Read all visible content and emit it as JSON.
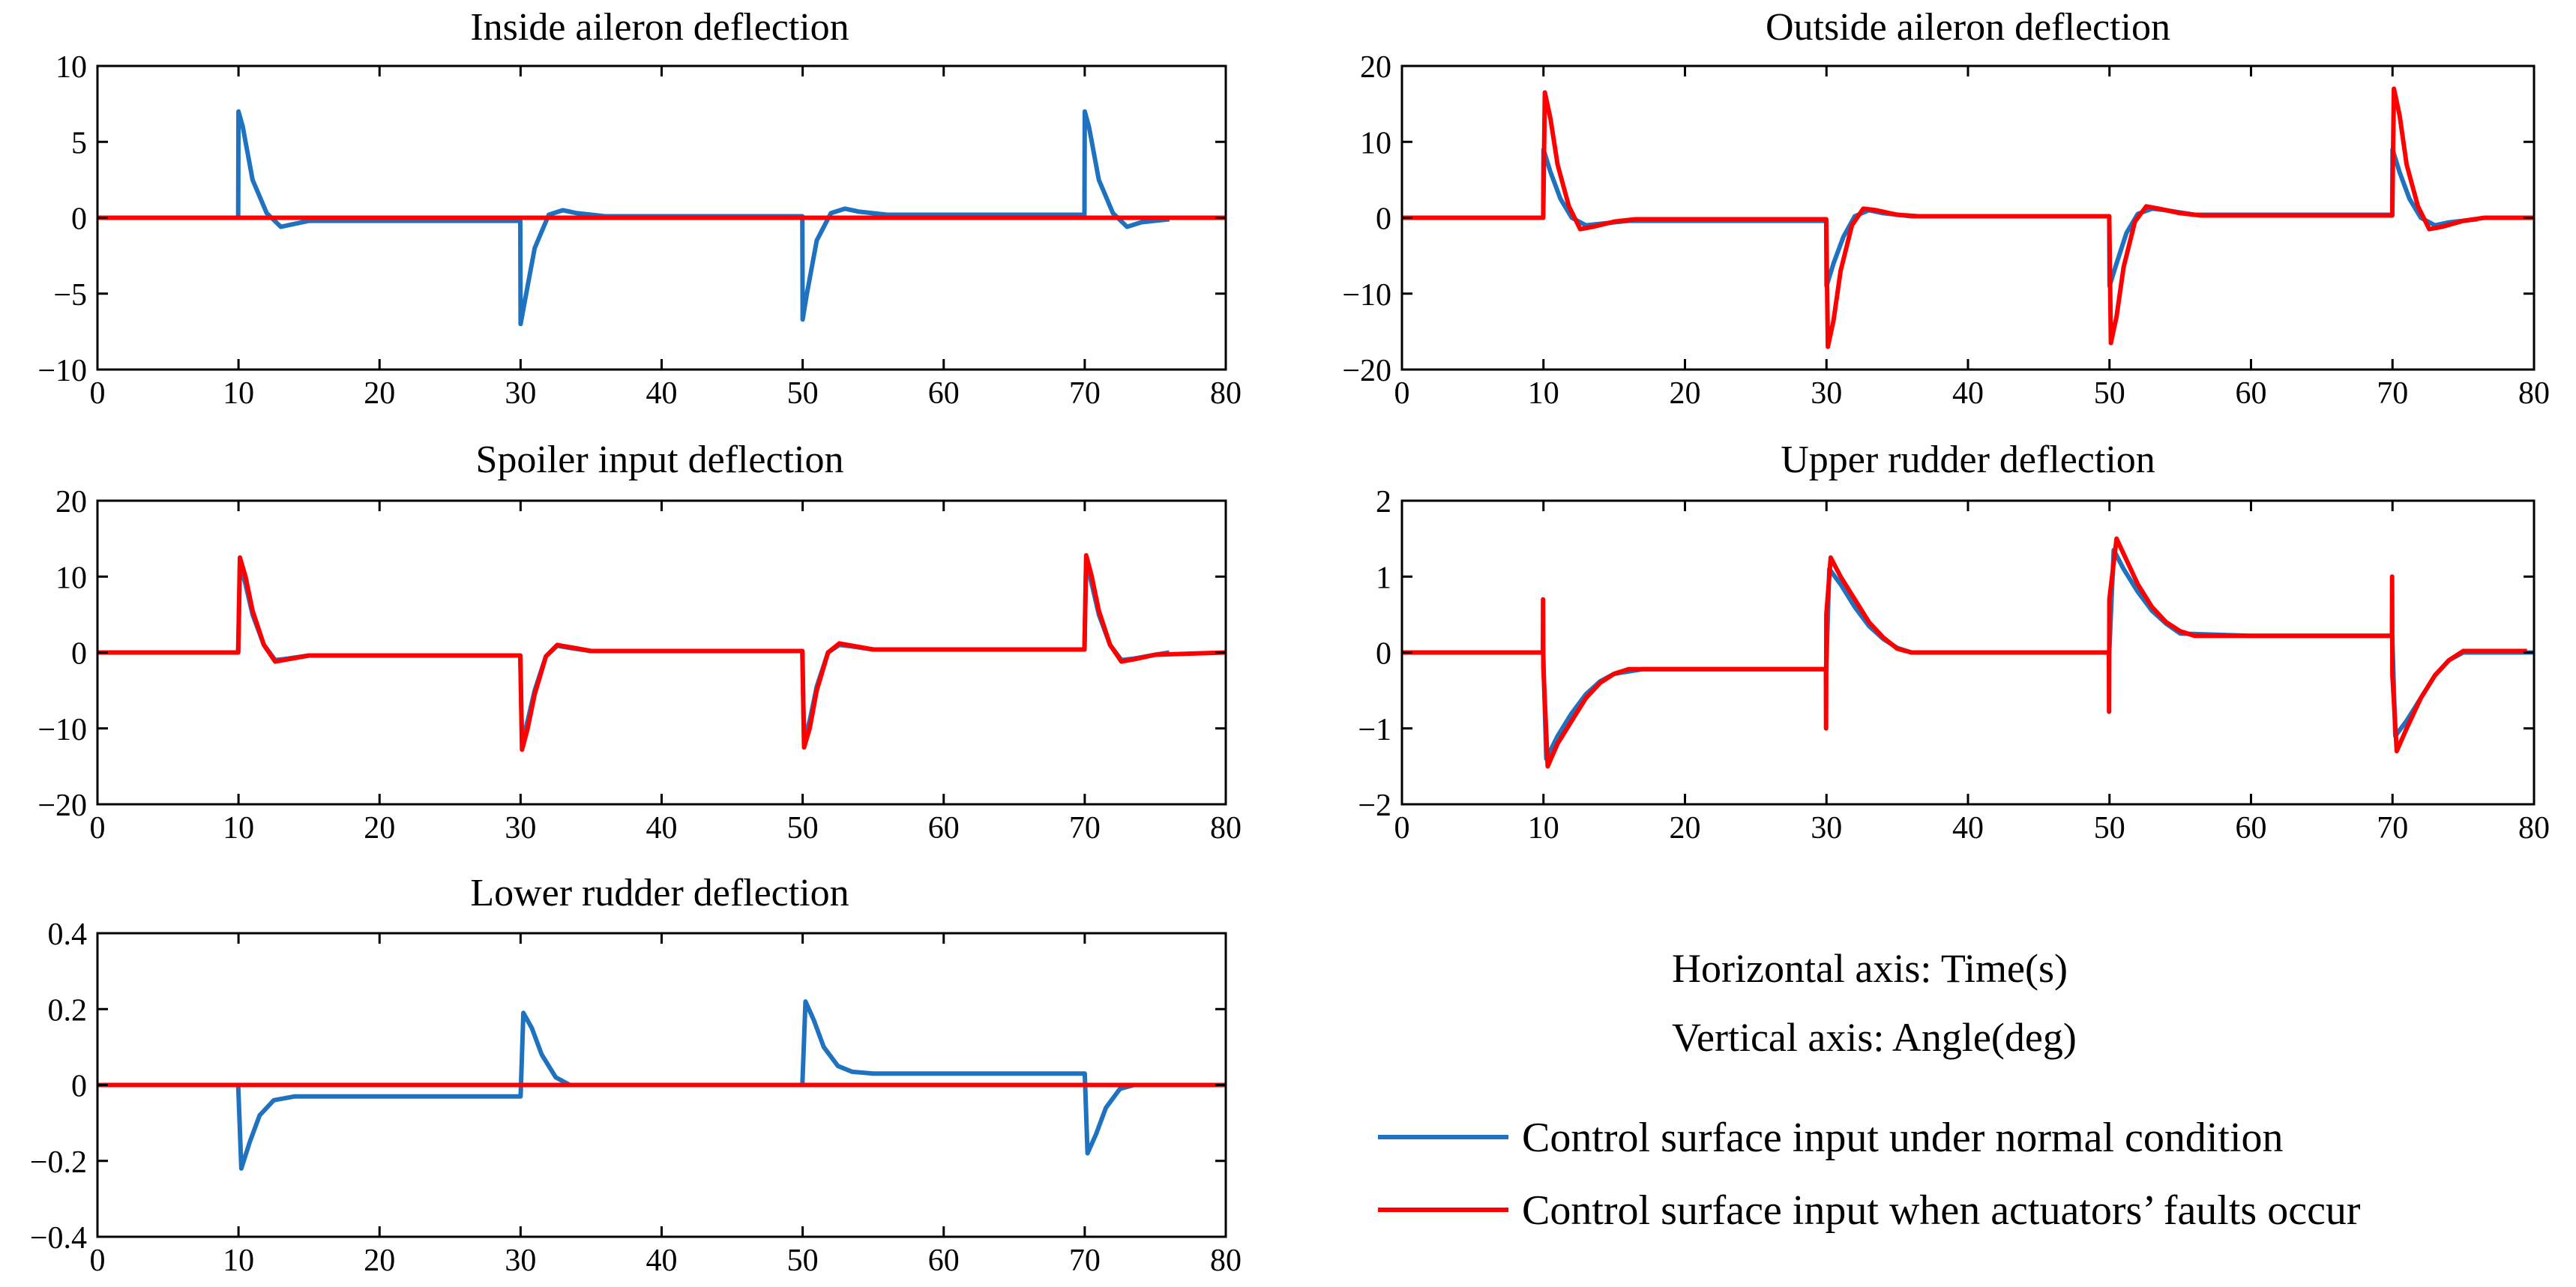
{
  "colors": {
    "normal": "#1f72bf",
    "fault": "#ff0000",
    "axis": "#000000"
  },
  "notes": {
    "horizontal_axis": "Horizontal axis: Time(s)",
    "vertical_axis": "Vertical axis: Angle(deg)"
  },
  "legend": {
    "normal": "Control surface input under normal condition",
    "fault": "Control surface input when actuators’ faults occur"
  },
  "chart_data": [
    {
      "type": "line",
      "title": "Inside aileron deflection",
      "xlim": [
        0,
        80
      ],
      "ylim": [
        -10,
        10
      ],
      "xticks": [
        0,
        10,
        20,
        30,
        40,
        50,
        60,
        70,
        80
      ],
      "xtick_labels": [
        "0",
        "10",
        "20",
        "30",
        "40",
        "50",
        "60",
        "70",
        "80"
      ],
      "yticks": [
        -10,
        -5,
        0,
        5,
        10
      ],
      "ytick_labels": [
        "−10",
        "−5",
        "0",
        "5",
        "10"
      ],
      "series": [
        {
          "name": "Control surface input under normal condition",
          "color": "normal",
          "x": [
            0,
            9.98,
            10,
            10.3,
            11,
            12,
            13,
            15,
            29.98,
            30,
            30.3,
            31,
            32,
            33,
            34,
            36,
            49.98,
            50,
            50.3,
            51,
            52,
            53,
            54,
            56,
            69.98,
            70,
            70.3,
            71,
            72,
            73,
            74,
            76
          ],
          "y": [
            0,
            0,
            7,
            6,
            2.5,
            0.3,
            -0.6,
            -0.2,
            -0.2,
            -7,
            -5.5,
            -2,
            0.2,
            0.5,
            0.3,
            0.1,
            0.1,
            -6.7,
            -5,
            -1.5,
            0.3,
            0.6,
            0.4,
            0.2,
            0.2,
            7,
            6,
            2.5,
            0.3,
            -0.6,
            -0.3,
            -0.1
          ]
        },
        {
          "name": "Control surface input when actuators’ faults occur",
          "color": "fault",
          "x": [
            0,
            80
          ],
          "y": [
            0,
            0
          ]
        }
      ]
    },
    {
      "type": "line",
      "title": "Outside aileron deflection",
      "xlim": [
        0,
        80
      ],
      "ylim": [
        -20,
        20
      ],
      "xticks": [
        0,
        10,
        20,
        30,
        40,
        50,
        60,
        70,
        80
      ],
      "xtick_labels": [
        "0",
        "10",
        "20",
        "30",
        "40",
        "50",
        "60",
        "70",
        "80"
      ],
      "yticks": [
        -20,
        -10,
        0,
        10,
        20
      ],
      "ytick_labels": [
        "−20",
        "−10",
        "0",
        "10",
        "20"
      ],
      "series": [
        {
          "name": "Control surface input under normal condition",
          "color": "normal",
          "x": [
            0,
            9.98,
            10,
            10.5,
            11.2,
            12,
            13,
            14,
            16,
            29.98,
            30,
            30.5,
            31.2,
            32,
            33,
            34,
            36,
            49.98,
            50,
            50.5,
            51.2,
            52,
            53,
            54,
            56,
            69.98,
            70,
            70.5,
            71.2,
            72,
            73,
            74,
            76
          ],
          "y": [
            0,
            0,
            9,
            6,
            2.5,
            0,
            -1,
            -0.8,
            -0.4,
            -0.4,
            -9,
            -6,
            -2.5,
            0.2,
            1,
            0.6,
            0.2,
            0.2,
            -9,
            -6,
            -2,
            0.5,
            1.2,
            1,
            0.4,
            0.4,
            9,
            6,
            2.5,
            0,
            -1,
            -0.6,
            -0.2
          ]
        },
        {
          "name": "Control surface input when actuators’ faults occur",
          "color": "fault",
          "x": [
            0,
            9.98,
            10.1,
            10.5,
            11,
            11.8,
            12.6,
            13.5,
            15,
            16.5,
            29.98,
            30.1,
            30.5,
            31,
            31.8,
            32.6,
            33.5,
            35,
            36.5,
            49.98,
            50.1,
            50.5,
            51,
            51.8,
            52.6,
            53.5,
            55,
            56.5,
            69.98,
            70.1,
            70.5,
            71,
            71.8,
            72.6,
            73.5,
            75,
            76.5,
            80
          ],
          "y": [
            0,
            0,
            16.5,
            13,
            7,
            1.5,
            -1.5,
            -1.2,
            -0.5,
            -0.2,
            -0.2,
            -17,
            -13.5,
            -7,
            -1,
            1.2,
            1,
            0.4,
            0.2,
            0.2,
            -16.5,
            -13,
            -6.5,
            -0.5,
            1.5,
            1.2,
            0.6,
            0.3,
            0.3,
            17,
            13.5,
            7,
            1.5,
            -1.5,
            -1.2,
            -0.4,
            0,
            0
          ]
        }
      ]
    },
    {
      "type": "line",
      "title": "Spoiler input deflection",
      "xlim": [
        0,
        80
      ],
      "ylim": [
        -20,
        20
      ],
      "xticks": [
        0,
        10,
        20,
        30,
        40,
        50,
        60,
        70,
        80
      ],
      "xtick_labels": [
        "0",
        "10",
        "20",
        "30",
        "40",
        "50",
        "60",
        "70",
        "80"
      ],
      "yticks": [
        -20,
        -10,
        0,
        10,
        20
      ],
      "ytick_labels": [
        "−20",
        "−10",
        "0",
        "10",
        "20"
      ],
      "series": [
        {
          "name": "Control surface input under normal condition",
          "color": "normal",
          "x": [
            0,
            9.98,
            10.1,
            10.5,
            11,
            11.8,
            12.6,
            13.5,
            15,
            29.98,
            30.1,
            30.5,
            31,
            31.8,
            32.6,
            33.5,
            35,
            49.98,
            50.1,
            50.5,
            51,
            51.8,
            52.6,
            53.5,
            55,
            69.98,
            70.1,
            70.5,
            71,
            71.8,
            72.6,
            73.5,
            75,
            76
          ],
          "y": [
            0,
            0,
            11.5,
            9,
            5,
            1,
            -1,
            -0.8,
            -0.4,
            -0.4,
            -12,
            -9,
            -5,
            -0.5,
            0.9,
            0.6,
            0.2,
            0.2,
            -11.5,
            -9,
            -4.5,
            0,
            1,
            0.8,
            0.4,
            0.4,
            12,
            9,
            5,
            1,
            -1,
            -0.8,
            -0.3,
            0
          ]
        },
        {
          "name": "Control surface input when actuators’ faults occur",
          "color": "fault",
          "x": [
            0,
            9.98,
            10.1,
            10.5,
            11,
            11.8,
            12.6,
            13.5,
            15,
            29.98,
            30.1,
            30.5,
            31,
            31.8,
            32.6,
            33.5,
            35,
            49.98,
            50.1,
            50.5,
            51,
            51.8,
            52.6,
            53.5,
            55,
            69.98,
            70.1,
            70.5,
            71,
            71.8,
            72.6,
            73.5,
            75,
            80
          ],
          "y": [
            0,
            0,
            12.5,
            10,
            5.5,
            1,
            -1.2,
            -0.9,
            -0.4,
            -0.4,
            -12.8,
            -10,
            -5.5,
            -0.5,
            1,
            0.7,
            0.2,
            0.2,
            -12.5,
            -10,
            -5,
            0,
            1.2,
            0.9,
            0.4,
            0.4,
            12.8,
            10,
            5.5,
            1,
            -1.2,
            -0.9,
            -0.3,
            0
          ]
        }
      ]
    },
    {
      "type": "line",
      "title": "Upper rudder deflection",
      "xlim": [
        0,
        80
      ],
      "ylim": [
        -2,
        2
      ],
      "xticks": [
        0,
        10,
        20,
        30,
        40,
        50,
        60,
        70,
        80
      ],
      "xtick_labels": [
        "0",
        "10",
        "20",
        "30",
        "40",
        "50",
        "60",
        "70",
        "80"
      ],
      "yticks": [
        -2,
        -1,
        0,
        1,
        2
      ],
      "ytick_labels": [
        "−2",
        "−1",
        "0",
        "1",
        "2"
      ],
      "series": [
        {
          "name": "Control surface input under normal condition",
          "color": "normal",
          "x": [
            0,
            9.98,
            10.2,
            11,
            12,
            13,
            14,
            15,
            17,
            22,
            29.98,
            30.2,
            31,
            32,
            33,
            34,
            35,
            36,
            40,
            49.98,
            50.3,
            51,
            52,
            53,
            54,
            55,
            60,
            69.98,
            70.2,
            71,
            72,
            73,
            74,
            75,
            78,
            80
          ],
          "y": [
            0,
            0,
            -1.4,
            -1.1,
            -0.8,
            -0.55,
            -0.38,
            -0.28,
            -0.22,
            -0.22,
            -0.22,
            1.1,
            0.9,
            0.6,
            0.35,
            0.18,
            0.06,
            0,
            0,
            0,
            1.35,
            1.1,
            0.8,
            0.55,
            0.38,
            0.25,
            0.22,
            0.22,
            -1.1,
            -0.9,
            -0.6,
            -0.3,
            -0.1,
            0,
            0,
            0
          ]
        },
        {
          "name": "Control surface input when actuators’ faults occur",
          "color": "fault",
          "x": [
            0,
            9.96,
            9.97,
            9.99,
            10.3,
            11,
            12,
            13,
            14,
            15,
            16,
            20,
            29.96,
            29.97,
            29.99,
            30.3,
            31,
            32,
            33,
            34,
            35,
            36,
            40,
            49.96,
            49.97,
            49.99,
            50.5,
            51,
            52,
            53,
            54,
            55,
            56,
            60,
            69.96,
            69.97,
            69.99,
            70.3,
            71,
            72,
            73,
            74,
            75,
            78,
            79.5
          ],
          "y": [
            0,
            0,
            0.7,
            -0.2,
            -1.5,
            -1.2,
            -0.9,
            -0.6,
            -0.4,
            -0.28,
            -0.22,
            -0.22,
            -0.22,
            -1.0,
            0.5,
            1.25,
            1.0,
            0.7,
            0.4,
            0.2,
            0.05,
            0,
            0,
            0,
            -0.78,
            0.7,
            1.5,
            1.3,
            0.9,
            0.6,
            0.4,
            0.28,
            0.22,
            0.22,
            0.22,
            1.0,
            -0.3,
            -1.3,
            -1.0,
            -0.6,
            -0.3,
            -0.1,
            0.02,
            0.02,
            0.02
          ]
        }
      ]
    },
    {
      "type": "line",
      "title": "Lower rudder deflection",
      "xlim": [
        0,
        80
      ],
      "ylim": [
        -0.4,
        0.4
      ],
      "xticks": [
        0,
        10,
        20,
        30,
        40,
        50,
        60,
        70,
        80
      ],
      "xtick_labels": [
        "0",
        "10",
        "20",
        "30",
        "40",
        "50",
        "60",
        "70",
        "80"
      ],
      "yticks": [
        -0.4,
        -0.2,
        0,
        0.2,
        0.4
      ],
      "ytick_labels": [
        "−0.4",
        "−0.2",
        "0",
        "0.2",
        "0.4"
      ],
      "series": [
        {
          "name": "Control surface input under normal condition",
          "color": "normal",
          "x": [
            0,
            9.98,
            10.2,
            10.8,
            11.5,
            12.5,
            14,
            16,
            30,
            30.2,
            30.8,
            31.5,
            32.5,
            33.5,
            49.98,
            50.2,
            50.8,
            51.5,
            52.5,
            53.5,
            55,
            70,
            70.2,
            70.8,
            71.5,
            72.5,
            73.5,
            80
          ],
          "y": [
            0,
            0,
            -0.22,
            -0.15,
            -0.08,
            -0.04,
            -0.03,
            -0.03,
            -0.03,
            0.19,
            0.15,
            0.08,
            0.02,
            0,
            0,
            0.22,
            0.17,
            0.1,
            0.05,
            0.035,
            0.03,
            0.03,
            -0.18,
            -0.13,
            -0.06,
            -0.01,
            0,
            0
          ]
        },
        {
          "name": "Control surface input when actuators’ faults occur",
          "color": "fault",
          "x": [
            0,
            80
          ],
          "y": [
            0,
            0
          ]
        }
      ]
    }
  ]
}
